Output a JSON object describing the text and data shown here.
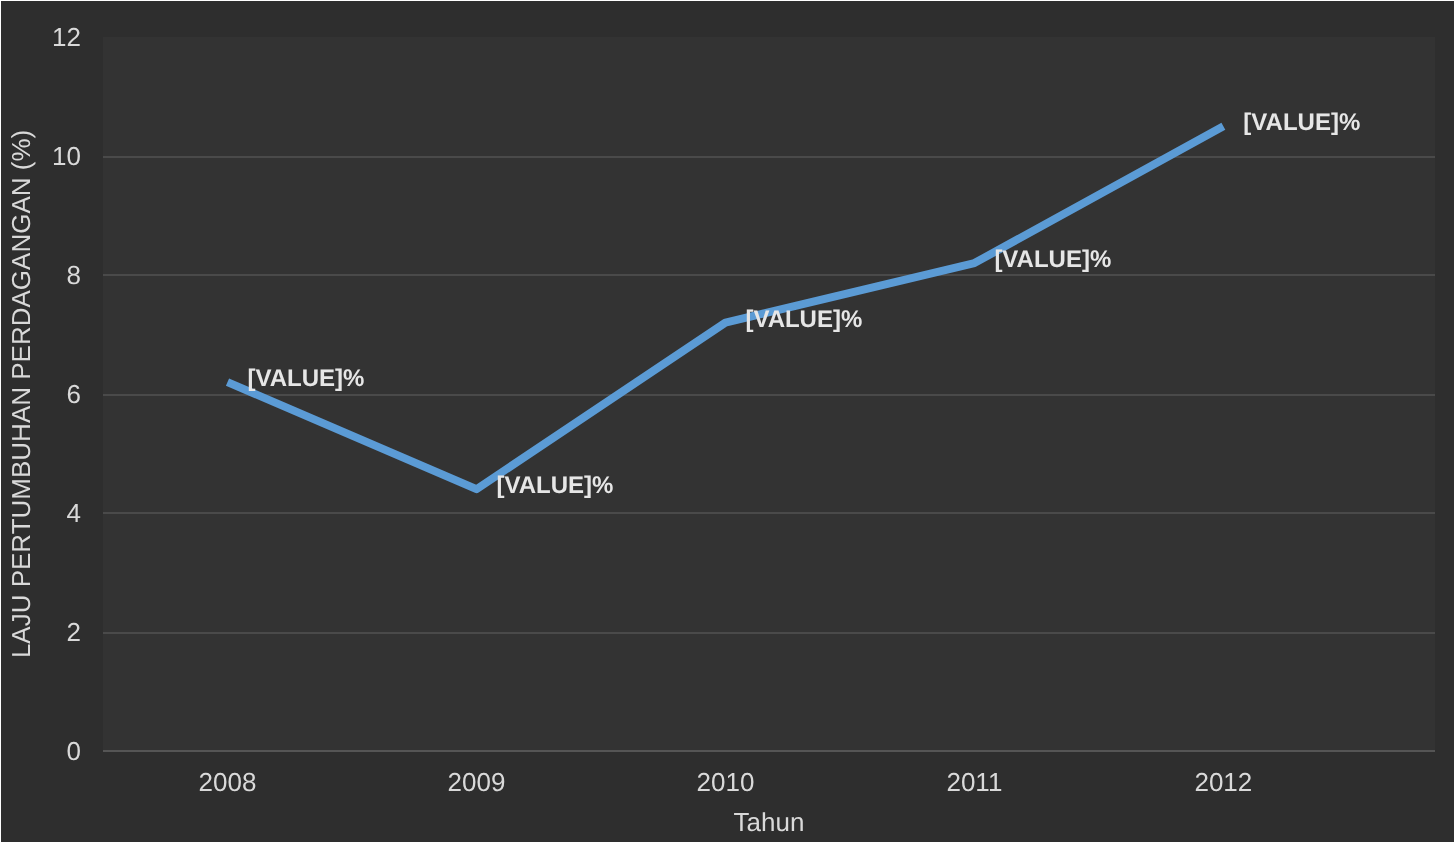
{
  "chart_data": {
    "type": "line",
    "xlabel": "Tahun",
    "ylabel": "LAJU PERTUMBUHAN PERDAGANGAN (%)",
    "categories": [
      "2008",
      "2009",
      "2010",
      "2011",
      "2012"
    ],
    "series": [
      {
        "color": "#5b9bd5",
        "values": [
          6.2,
          4.4,
          7.2,
          8.2,
          10.5
        ],
        "value_labels": [
          "[VALUE]%",
          "[VALUE]%",
          "[VALUE]%",
          "[VALUE]%",
          "[VALUE]%"
        ]
      }
    ],
    "ylim": [
      0,
      12
    ],
    "yticks": [
      0,
      2,
      4,
      6,
      8,
      10,
      12
    ],
    "grid": "y",
    "marker": "none",
    "line_style": "solid"
  }
}
